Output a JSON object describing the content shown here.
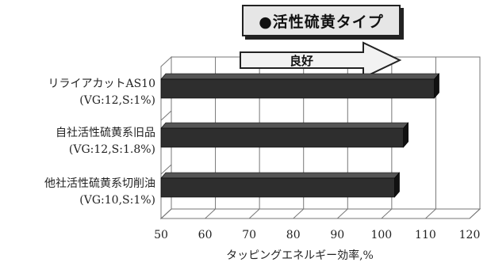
{
  "chart_data": {
    "type": "bar",
    "orientation": "horizontal",
    "style": "3d",
    "title": "●活性硫黄タイプ",
    "arrow_label": "良好",
    "categories": [
      {
        "name": "リライアカットAS10",
        "spec": "(VG:12,S:1%)"
      },
      {
        "name": "自社活性硫黄系旧品",
        "spec": "(VG:12,S:1.8%)"
      },
      {
        "name": "他社活性硫黄系切削油",
        "spec": "(VG:10,S:1%)"
      }
    ],
    "values": [
      112,
      105,
      103
    ],
    "xlabel": "タッピングエネルギー効率,%",
    "xlim": [
      50,
      120
    ],
    "xticks": [
      "50",
      "60",
      "70",
      "80",
      "90",
      "100",
      "110",
      "120"
    ],
    "grid": true,
    "colors": {
      "bar": "#2e2e2e",
      "bar_side": "#111111",
      "bar_top": "#555555",
      "grid": "#777777"
    }
  }
}
